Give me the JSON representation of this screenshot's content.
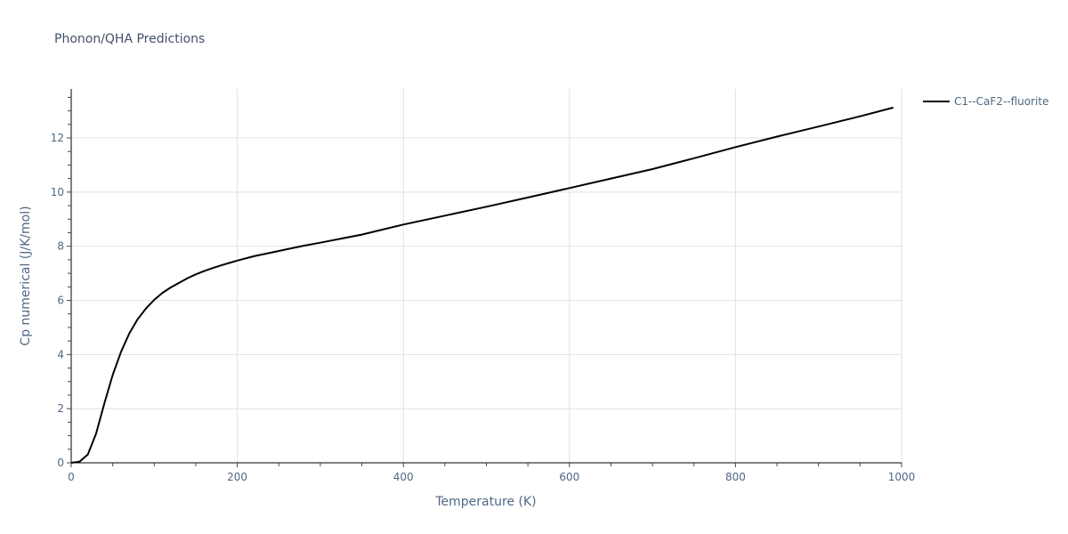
{
  "title": "Phonon/QHA Predictions",
  "colors": {
    "line": "#000000",
    "grid": "#e1e1e1",
    "axis_text": "#506784",
    "title_text": "#444f6a"
  },
  "chart_data": {
    "type": "line",
    "title": "Phonon/QHA Predictions",
    "xlabel": "Temperature (K)",
    "ylabel": "Cp numerical (J/K/mol)",
    "xlim": [
      0,
      1000
    ],
    "ylim": [
      0,
      13.8
    ],
    "x_ticks": [
      0,
      200,
      400,
      600,
      800,
      1000
    ],
    "y_ticks": [
      0,
      2,
      4,
      6,
      8,
      10,
      12
    ],
    "x_minor_step": 50,
    "y_minor_step": 0.5,
    "grid": true,
    "legend_position": "right-top",
    "series": [
      {
        "name": "C1--CaF2--fluorite",
        "color": "#000000",
        "x": [
          0,
          10,
          20,
          30,
          40,
          50,
          60,
          70,
          80,
          90,
          100,
          110,
          120,
          130,
          140,
          150,
          160,
          170,
          180,
          190,
          200,
          220,
          240,
          260,
          280,
          300,
          350,
          400,
          450,
          500,
          550,
          600,
          650,
          700,
          750,
          800,
          850,
          900,
          950,
          990
        ],
        "y": [
          0.0,
          0.04,
          0.31,
          1.08,
          2.2,
          3.25,
          4.1,
          4.78,
          5.3,
          5.7,
          6.02,
          6.28,
          6.48,
          6.65,
          6.82,
          6.96,
          7.08,
          7.19,
          7.29,
          7.38,
          7.47,
          7.63,
          7.76,
          7.89,
          8.02,
          8.13,
          8.43,
          8.8,
          9.13,
          9.46,
          9.8,
          10.15,
          10.5,
          10.85,
          11.25,
          11.66,
          12.05,
          12.42,
          12.8,
          13.12
        ]
      }
    ]
  }
}
